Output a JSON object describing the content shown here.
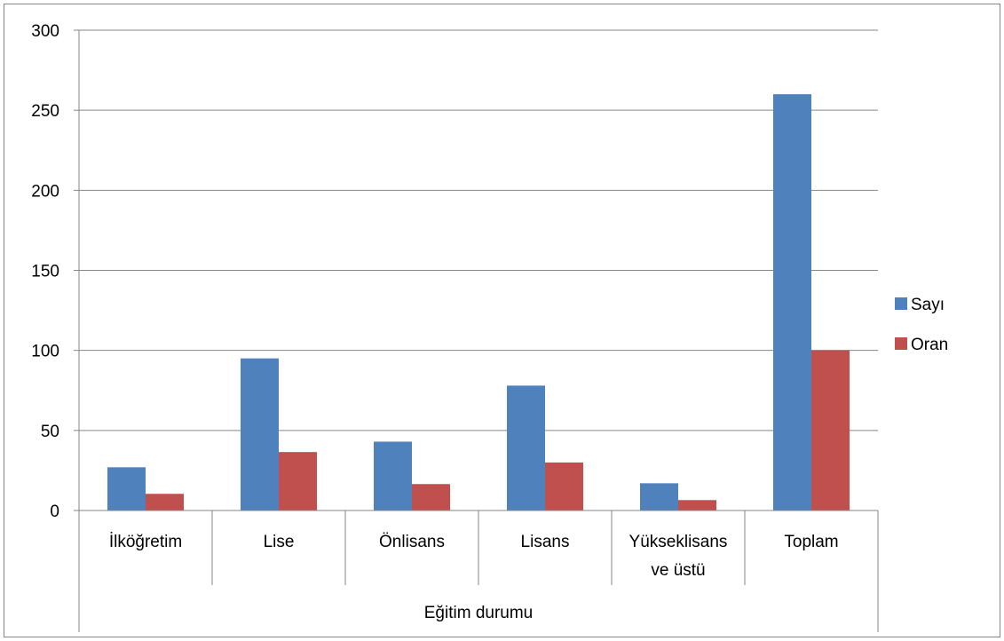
{
  "chart_data": {
    "type": "bar",
    "categories": [
      [
        "İlköğretim"
      ],
      [
        "Lise"
      ],
      [
        "Önlisans"
      ],
      [
        "Lisans"
      ],
      [
        "Yükseklisans",
        "ve üstü"
      ],
      [
        "Toplam"
      ]
    ],
    "group_label": "Eğitim durumu",
    "series": [
      {
        "name": "Sayı",
        "color": "#4F81BD",
        "values": [
          27,
          95,
          43,
          78,
          17,
          260
        ]
      },
      {
        "name": "Oran",
        "color": "#C0504D",
        "values": [
          10.4,
          36.5,
          16.5,
          30,
          6.5,
          100
        ]
      }
    ],
    "ylim": [
      0,
      300
    ],
    "yticks": [
      0,
      50,
      100,
      150,
      200,
      250,
      300
    ],
    "grid": true,
    "legend_position": "right"
  }
}
